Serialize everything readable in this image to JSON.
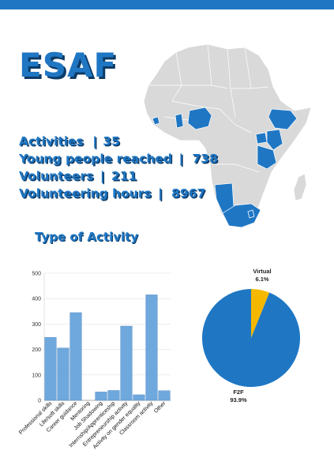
{
  "header": {
    "title": "ESAF"
  },
  "stats": [
    {
      "label": "Activities",
      "separator": "|",
      "value": "35"
    },
    {
      "label": "Young people reached",
      "separator": "|",
      "value": "738"
    },
    {
      "label": "Volunteers",
      "separator": "|",
      "value": "211"
    },
    {
      "label": "Volunteering hours",
      "separator": "|",
      "value": "8967"
    }
  ],
  "section": {
    "title": "Type of Activity"
  },
  "colors": {
    "accent": "#1f77c4",
    "shadow": "#0d3b66",
    "bar": "#6fa8dc",
    "pie_main": "#1f77c4",
    "pie_minor": "#f5b800",
    "map_land": "#d9d9d9",
    "map_highlight": "#1f77c4"
  },
  "chart_data": [
    {
      "type": "bar",
      "categories": [
        "Professional skills",
        "Life/soft skills",
        "Career guidance",
        "Mentoring",
        "Job Shadowing",
        "Internship/Apprenticeship",
        "Entrepreneurship activity",
        "Activity on gender equality",
        "Classroom activity",
        "Other"
      ],
      "values": [
        248,
        206,
        345,
        0,
        33,
        39,
        292,
        22,
        415,
        38
      ],
      "yticks": [
        0,
        100,
        200,
        300,
        400,
        500
      ],
      "ylim": [
        0,
        500
      ],
      "title": "",
      "xlabel": "",
      "ylabel": "",
      "grid": true
    },
    {
      "type": "pie",
      "slices": [
        {
          "name": "Virtual",
          "label": "6.1%",
          "value": 6.1
        },
        {
          "name": "F2F",
          "label": "93.9%",
          "value": 93.9
        }
      ]
    }
  ]
}
